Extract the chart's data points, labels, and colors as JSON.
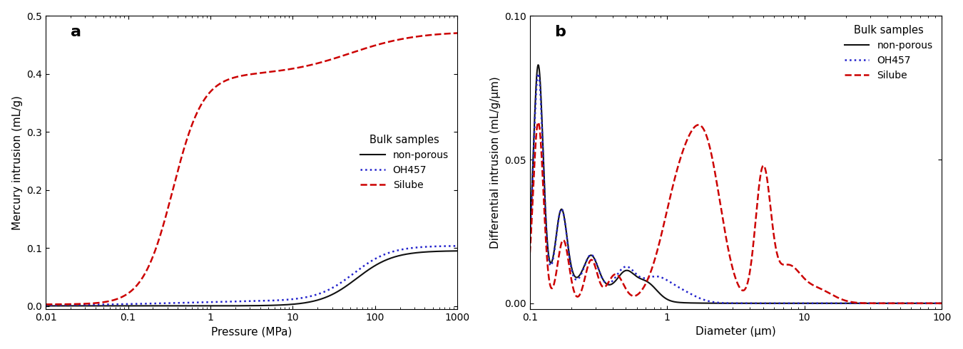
{
  "panel_a": {
    "xlabel": "Pressure (MPa)",
    "ylabel": "Mercury intrusion (mL/g)",
    "xlim": [
      0.01,
      1000
    ],
    "ylim": [
      -0.005,
      0.5
    ],
    "yticks": [
      0.0,
      0.1,
      0.2,
      0.3,
      0.4,
      0.5
    ],
    "xticks": [
      0.01,
      0.1,
      1,
      10,
      100,
      1000
    ],
    "label": "a",
    "legend_title": "Bulk samples",
    "legend_loc": "center right",
    "series": {
      "non_porous": {
        "label": "non-porous",
        "color": "#111111",
        "linestyle": "solid",
        "linewidth": 1.5
      },
      "OH457": {
        "label": "OH457",
        "color": "#2222cc",
        "linestyle": "dotted",
        "linewidth": 1.8
      },
      "Silube": {
        "label": "Silube",
        "color": "#cc0000",
        "linestyle": "dashed",
        "linewidth": 1.8
      }
    }
  },
  "panel_b": {
    "xlabel": "Diameter (μm)",
    "ylabel": "Differential intrusion (mL/g/μm)",
    "xlim": [
      0.1,
      100
    ],
    "ylim": [
      -0.002,
      0.1
    ],
    "yticks": [
      0.0,
      0.05,
      0.1
    ],
    "xticks": [
      0.1,
      1,
      10,
      100
    ],
    "label": "b",
    "legend_title": "Bulk samples",
    "legend_loc": "upper right",
    "series": {
      "non_porous": {
        "label": "non-porous",
        "color": "#111111",
        "linestyle": "solid",
        "linewidth": 1.5
      },
      "OH457": {
        "label": "OH457",
        "color": "#2222cc",
        "linestyle": "dotted",
        "linewidth": 1.8
      },
      "Silube": {
        "label": "Silube",
        "color": "#cc0000",
        "linestyle": "dashed",
        "linewidth": 1.8
      }
    }
  }
}
